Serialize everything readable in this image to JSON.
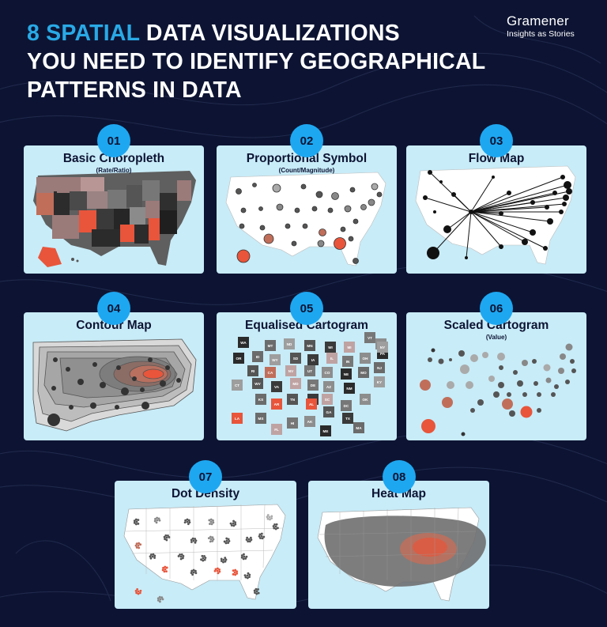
{
  "header": {
    "title_highlight": "8 SPATIAL",
    "title_line1_rest": " DATA VISUALIZATIONS",
    "title_line2": "YOU NEED TO IDENTIFY GEOGRAPHICAL",
    "title_line3": "PATTERNS IN DATA"
  },
  "brand": {
    "name": "Gramener",
    "tagline": "Insights as Stories"
  },
  "cards": [
    {
      "number": "01",
      "title": "Basic Choropleth",
      "subtitle": "(Rate/Ratio)"
    },
    {
      "number": "02",
      "title": "Proportional Symbol",
      "subtitle": "(Count/Magnitude)"
    },
    {
      "number": "03",
      "title": "Flow Map",
      "subtitle": ""
    },
    {
      "number": "04",
      "title": "Contour Map",
      "subtitle": ""
    },
    {
      "number": "05",
      "title": "Equalised Cartogram",
      "subtitle": ""
    },
    {
      "number": "06",
      "title": "Scaled Cartogram",
      "subtitle": "(Value)"
    },
    {
      "number": "07",
      "title": "Dot Density",
      "subtitle": ""
    },
    {
      "number": "08",
      "title": "Heat Map",
      "subtitle": ""
    }
  ],
  "cartogram_tiles": [
    "WA",
    "MT",
    "ND",
    "MN",
    "WI",
    "MI",
    "VT",
    "NH",
    "OR",
    "ID",
    "WY",
    "SD",
    "IA",
    "IL",
    "IN",
    "OH",
    "PA",
    "NJ",
    "CT",
    "RI",
    "CA",
    "NV",
    "UT",
    "CO",
    "NE",
    "MO",
    "KY",
    "WV",
    "VA",
    "MD",
    "DE",
    "AZ",
    "NM",
    "KS",
    "AR",
    "TN",
    "NC",
    "SC",
    "DC",
    "OK",
    "LA",
    "MS",
    "AL",
    "GA",
    "TX",
    "FL",
    "HI",
    "AK",
    "ME",
    "MA",
    "NY"
  ],
  "colors": {
    "background": "#0d1433",
    "accent": "#29a9e6",
    "badge": "#1ea7f1",
    "card": "#c8ecf8",
    "highlight": "#e8553b"
  }
}
